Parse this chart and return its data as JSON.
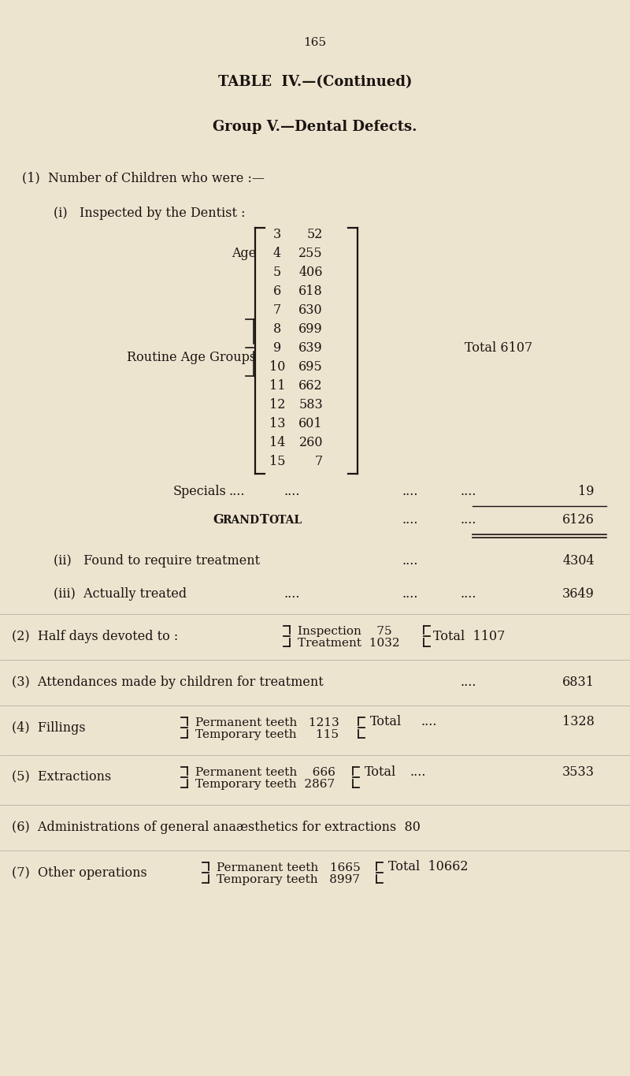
{
  "bg_color": "#ede4d0",
  "text_color": "#1a1410",
  "page_number": "165",
  "title1": "TABLE  IV.—(Continued)",
  "title2": "Group V.—Dental Defects.",
  "age_data": [
    [
      3,
      52
    ],
    [
      4,
      255
    ],
    [
      5,
      406
    ],
    [
      6,
      618
    ],
    [
      7,
      630
    ],
    [
      8,
      699
    ],
    [
      9,
      639
    ],
    [
      10,
      695
    ],
    [
      11,
      662
    ],
    [
      12,
      583
    ],
    [
      13,
      601
    ],
    [
      14,
      260
    ],
    [
      15,
      7
    ]
  ]
}
